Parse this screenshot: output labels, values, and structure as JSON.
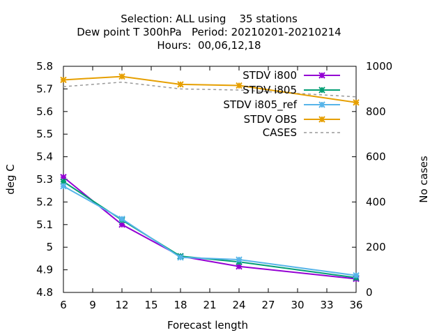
{
  "chart_data": {
    "type": "line",
    "title_lines": [
      "Selection: ALL using    35 stations",
      "Dew point T 300hPa   Period: 20210201-20210214",
      "Hours:  00,06,12,18"
    ],
    "xlabel": "Forecast length",
    "ylabel": "deg C",
    "y2label": "No cases",
    "xlim": [
      6,
      36
    ],
    "ylim": [
      4.8,
      5.8
    ],
    "y2lim": [
      0,
      1000
    ],
    "xticks": [
      6,
      9,
      12,
      15,
      18,
      21,
      24,
      27,
      30,
      33,
      36
    ],
    "yticks": [
      "4.8",
      "4.9",
      "5",
      "5.1",
      "5.2",
      "5.3",
      "5.4",
      "5.5",
      "5.6",
      "5.7",
      "5.8"
    ],
    "y2ticks": [
      0,
      200,
      400,
      600,
      800,
      1000
    ],
    "legend_position": "top-right",
    "grid": false,
    "series": [
      {
        "name": "STDV i800",
        "color": "#9400d3",
        "marker": "x",
        "axis": "y",
        "x": [
          6,
          12,
          18,
          24,
          36
        ],
        "values": [
          5.31,
          5.1,
          4.96,
          4.915,
          4.86
        ]
      },
      {
        "name": "STDV i805",
        "color": "#009e73",
        "marker": "x",
        "axis": "y",
        "x": [
          6,
          12,
          18,
          24,
          36
        ],
        "values": [
          5.29,
          5.12,
          4.96,
          4.935,
          4.865
        ]
      },
      {
        "name": "STDV i805_ref",
        "legend_text": "STDV i805_ref",
        "color": "#56b4e9",
        "marker": "x",
        "axis": "y",
        "x": [
          6,
          12,
          18,
          24,
          36
        ],
        "values": [
          5.27,
          5.125,
          4.955,
          4.945,
          4.875
        ]
      },
      {
        "name": "STDV OBS",
        "color": "#e69f00",
        "marker": "x",
        "axis": "y",
        "x": [
          6,
          12,
          18,
          24,
          36
        ],
        "values": [
          5.74,
          5.755,
          5.72,
          5.715,
          5.64
        ]
      },
      {
        "name": "CASES",
        "color": "#999999",
        "marker": "none",
        "dashed": true,
        "axis": "y2",
        "x": [
          6,
          12,
          18,
          24,
          36
        ],
        "values": [
          910,
          930,
          900,
          895,
          865
        ]
      }
    ]
  }
}
